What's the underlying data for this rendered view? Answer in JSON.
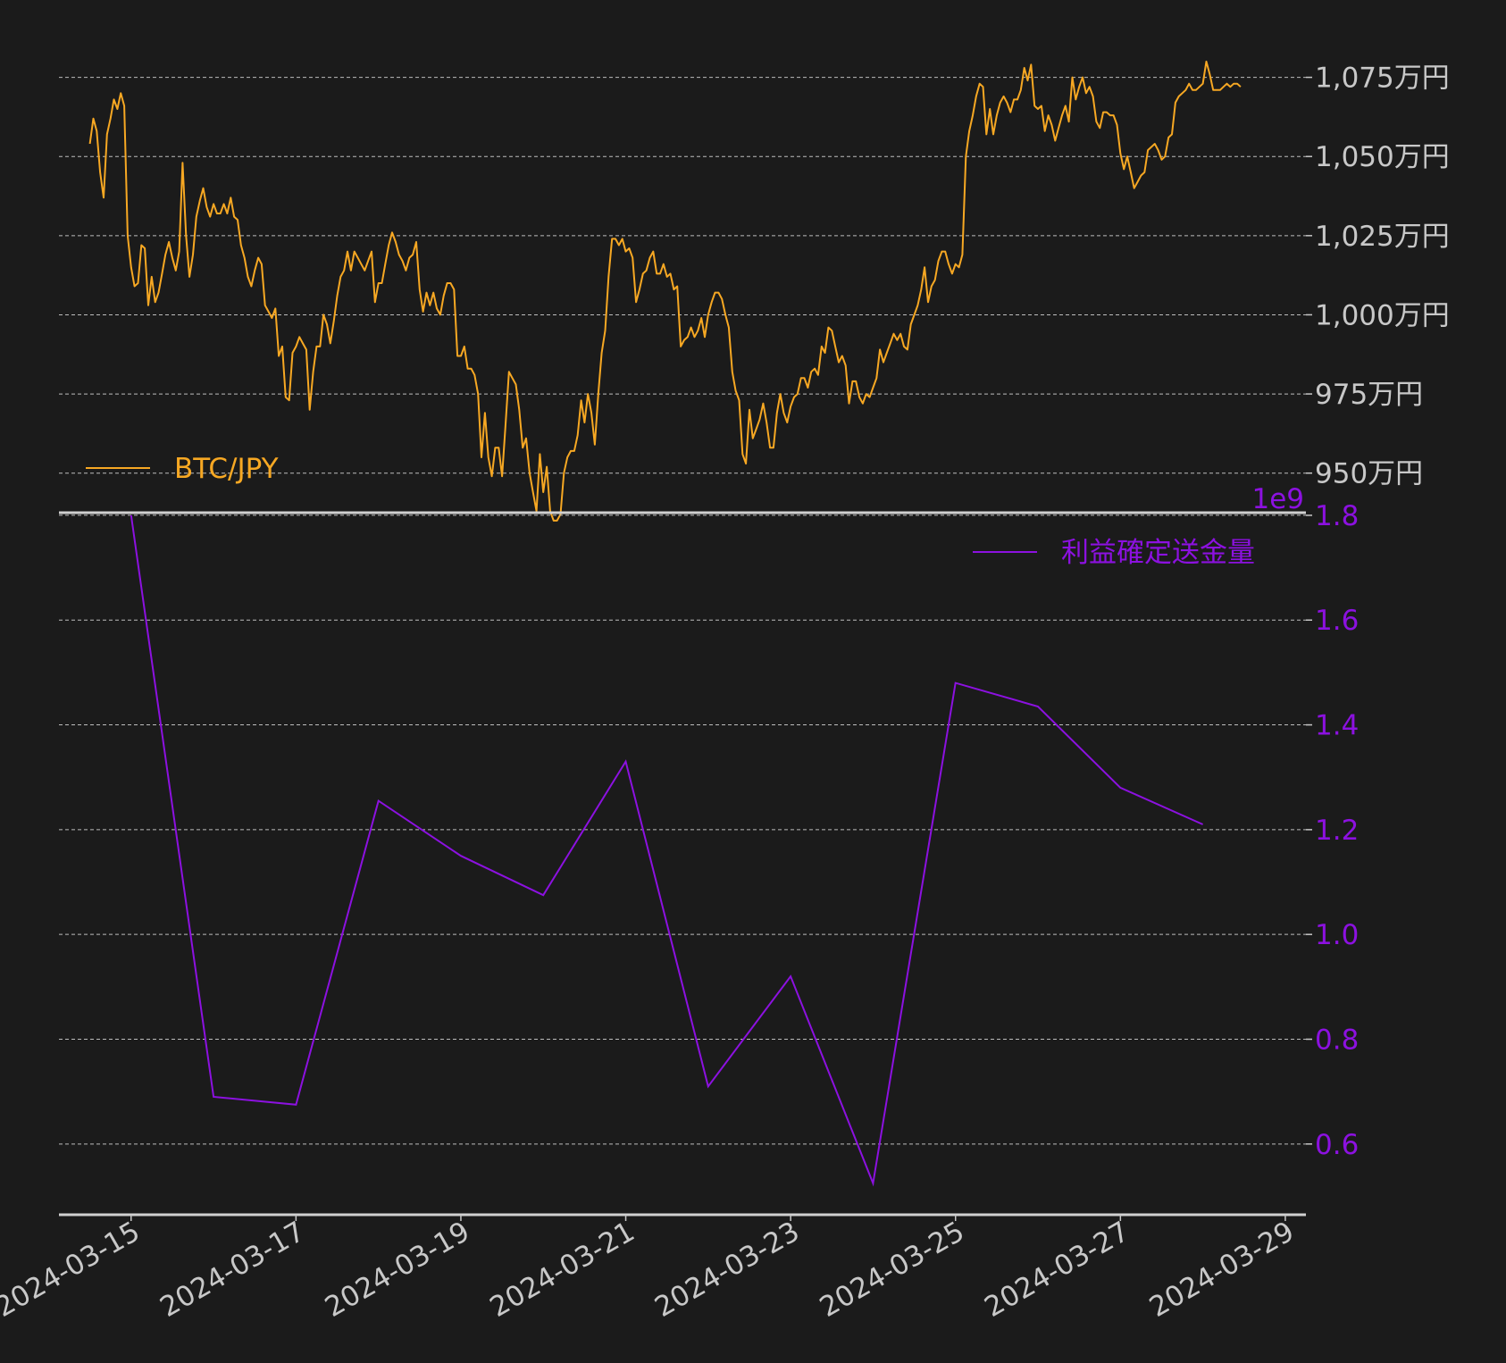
{
  "colors": {
    "background": "#1b1b1b",
    "price": "#f7a823",
    "volume": "#8c11e0",
    "tick_text": "#c8c8c8",
    "grid": "#bdbdbd",
    "spine": "#d0d0d0"
  },
  "chart_data": [
    {
      "type": "line",
      "panel": "top",
      "legend": {
        "label": "BTC/JPY",
        "position": "bottom-left"
      },
      "ylim": [
        9375000.0,
        10825000.0
      ],
      "yticks": [
        9500000,
        9750000,
        10000000,
        10250000,
        10500000,
        10750000
      ],
      "ytick_labels": [
        "950万円",
        "975万円",
        "1,000万円",
        "1,025万円",
        "1,050万円",
        "1,075万円"
      ],
      "grid": true,
      "x_start": "2024-03-14 12:00",
      "x_step_hours": 1,
      "values_man_yen": [
        1054,
        1062,
        1058,
        1045,
        1037,
        1057,
        1062,
        1068,
        1065,
        1070,
        1066,
        1025,
        1015,
        1009,
        1010,
        1022,
        1021,
        1003,
        1012,
        1004,
        1007,
        1013,
        1019,
        1023,
        1018,
        1014,
        1020,
        1048,
        1025,
        1012,
        1019,
        1031,
        1036,
        1040,
        1034,
        1031,
        1035,
        1032,
        1032,
        1035,
        1032,
        1037,
        1031,
        1030,
        1022,
        1018,
        1012,
        1009,
        1014,
        1018,
        1016,
        1003,
        1001,
        999,
        1002,
        987,
        990,
        974,
        973,
        988,
        990,
        993,
        991,
        989,
        970,
        982,
        990,
        990,
        1000,
        997,
        991,
        998,
        1006,
        1012,
        1014,
        1020,
        1014,
        1020,
        1018,
        1016,
        1014,
        1017,
        1020,
        1004,
        1010,
        1010,
        1016,
        1022,
        1026,
        1023,
        1019,
        1017,
        1014,
        1018,
        1019,
        1023,
        1008,
        1001,
        1007,
        1003,
        1007,
        1002,
        1000,
        1006,
        1010,
        1010,
        1008,
        987,
        987,
        990,
        983,
        983,
        981,
        975,
        955,
        969,
        955,
        949,
        958,
        958,
        949,
        965,
        982,
        980,
        978,
        970,
        958,
        961,
        950,
        944,
        938,
        956,
        944,
        952,
        938,
        935,
        935,
        937,
        950,
        955,
        957,
        957,
        962,
        973,
        966,
        975,
        969,
        959,
        975,
        988,
        995,
        1012,
        1024,
        1024,
        1022,
        1024,
        1020,
        1021,
        1018,
        1004,
        1008,
        1013,
        1014,
        1018,
        1020,
        1013,
        1013,
        1016,
        1012,
        1013,
        1008,
        1009,
        990,
        992,
        993,
        996,
        993,
        995,
        999,
        993,
        1000,
        1004,
        1007,
        1007,
        1005,
        1000,
        996,
        982,
        976,
        973,
        956,
        953,
        970,
        961,
        964,
        967,
        972,
        966,
        958,
        958,
        969,
        975,
        969,
        966,
        971,
        974,
        975,
        980,
        980,
        977,
        982,
        983,
        981,
        990,
        988,
        996,
        995,
        990,
        985,
        987,
        984,
        972,
        979,
        979,
        974,
        972,
        975,
        974,
        977,
        980,
        989,
        985,
        988,
        991,
        994,
        992,
        994,
        990,
        989,
        997,
        1000,
        1003,
        1008,
        1015,
        1004,
        1009,
        1011,
        1017,
        1020,
        1020,
        1016,
        1013,
        1016,
        1015,
        1019,
        1050,
        1058,
        1063,
        1069,
        1073,
        1072,
        1057,
        1065,
        1057,
        1063,
        1067,
        1069,
        1067,
        1064,
        1068,
        1068,
        1071,
        1078,
        1074,
        1079,
        1066,
        1065,
        1066,
        1058,
        1063,
        1060,
        1055,
        1059,
        1063,
        1066,
        1061,
        1075,
        1068,
        1072,
        1075,
        1070,
        1072,
        1069,
        1061,
        1059,
        1064,
        1064,
        1063,
        1063,
        1060,
        1051,
        1046,
        1050,
        1045,
        1040,
        1042,
        1044,
        1045,
        1052,
        1053,
        1054,
        1052,
        1049,
        1050,
        1056,
        1057,
        1067,
        1069,
        1070,
        1071,
        1073,
        1071,
        1071,
        1072,
        1073,
        1080,
        1076,
        1071,
        1071,
        1071,
        1072,
        1073,
        1072,
        1073,
        1073,
        1072
      ]
    },
    {
      "type": "line",
      "panel": "bottom",
      "legend": {
        "label": "利益確定送金量",
        "position": "top-right"
      },
      "y_offset_text": "1e9",
      "ylim": [
        0.465,
        1.805
      ],
      "yticks": [
        0.6,
        0.8,
        1.0,
        1.2,
        1.4,
        1.6,
        1.8
      ],
      "ytick_labels": [
        "0.6",
        "0.8",
        "1.0",
        "1.2",
        "1.4",
        "1.6",
        "1.8"
      ],
      "grid": true,
      "x": [
        "2024-03-15",
        "2024-03-16",
        "2024-03-17",
        "2024-03-18",
        "2024-03-19",
        "2024-03-20",
        "2024-03-21",
        "2024-03-22",
        "2024-03-23",
        "2024-03-24",
        "2024-03-25",
        "2024-03-26",
        "2024-03-27",
        "2024-03-28"
      ],
      "values": [
        1.8,
        0.69,
        0.675,
        1.255,
        1.15,
        1.075,
        1.33,
        0.71,
        0.92,
        0.525,
        1.48,
        1.435,
        1.28,
        1.21
      ]
    }
  ],
  "x_axis": {
    "ticks": [
      "2024-03-15",
      "2024-03-17",
      "2024-03-19",
      "2024-03-21",
      "2024-03-23",
      "2024-03-25",
      "2024-03-27",
      "2024-03-29"
    ],
    "labels": [
      "2024-03-15",
      "2024-03-17",
      "2024-03-19",
      "2024-03-21",
      "2024-03-23",
      "2024-03-25",
      "2024-03-27",
      "2024-03-29"
    ],
    "xlim": [
      "2024-03-14 03:00",
      "2024-03-29 06:00"
    ]
  }
}
